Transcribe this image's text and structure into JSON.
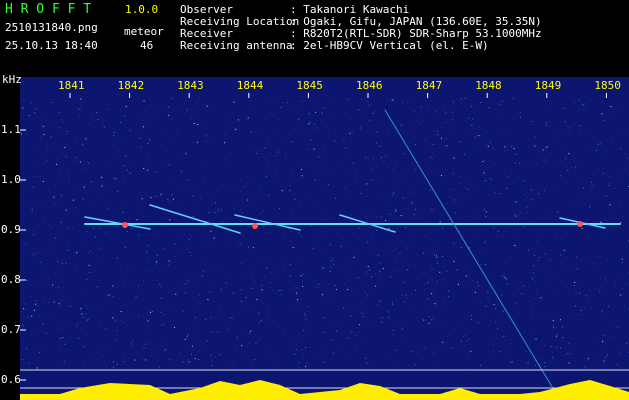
{
  "header": {
    "app_name": "H R O F F T",
    "version": "1.0.0",
    "file_name": "2510131840.png",
    "timestamp": "25.10.13 18:40",
    "mode": "meteor",
    "count": "46",
    "fields": [
      {
        "label": "Observer",
        "value": ": Takanori Kawachi"
      },
      {
        "label": "Receiving Location",
        "value": ": Ogaki, Gifu, JAPAN (136.60E, 35.35N)"
      },
      {
        "label": "Receiver",
        "value": ": R820T2(RTL-SDR) SDR-Sharp 53.1000MHz"
      },
      {
        "label": "Receiving antenna",
        "value": ": 2el-HB9CV Vertical (el. E-W)"
      }
    ]
  },
  "spectrogram": {
    "y_unit": "kHz",
    "x_labels": [
      "1841",
      "1842",
      "1843",
      "1844",
      "1845",
      "1846",
      "1847",
      "1848",
      "1849",
      "1850"
    ],
    "y_labels": [
      "1.1",
      "1.0",
      "0.9",
      "0.8",
      "0.7",
      "0.6"
    ]
  }
}
